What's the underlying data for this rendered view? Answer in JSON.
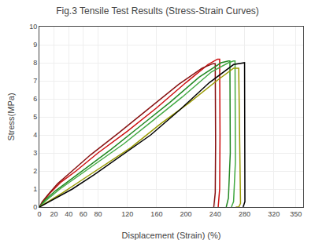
{
  "chart_data": {
    "type": "line",
    "title": "Fig.3 Tensile Test Results (Stress-Strain Curves)",
    "x_label": "Displacement (Strain) (%)",
    "y_label": "Stress(MPa)",
    "xlim": [
      0,
      360
    ],
    "ylim": [
      0,
      10
    ],
    "xticks": [
      0,
      20,
      40,
      60,
      80,
      120,
      160,
      200,
      240,
      280,
      320,
      350
    ],
    "yticks": [
      0,
      1,
      2,
      3,
      4,
      5,
      6,
      7,
      8,
      9,
      10
    ],
    "grid": true,
    "series": [
      {
        "color": "#cc1111",
        "x": [
          0,
          5,
          15,
          30,
          50,
          80,
          120,
          160,
          200,
          230,
          243,
          246,
          246.5,
          246,
          244
        ],
        "values": [
          0,
          0.3,
          0.8,
          1.4,
          2.0,
          3.0,
          4.2,
          5.5,
          6.9,
          7.9,
          8.2,
          8.2,
          4.0,
          1.0,
          0.0
        ]
      },
      {
        "color": "#881111",
        "x": [
          0,
          4,
          12,
          25,
          42,
          70,
          108,
          148,
          190,
          222,
          237,
          240,
          240.5,
          240,
          238
        ],
        "values": [
          0,
          0.3,
          0.7,
          1.3,
          1.9,
          2.9,
          4.1,
          5.4,
          6.8,
          7.7,
          7.95,
          7.95,
          3.5,
          0.8,
          0.0
        ]
      },
      {
        "color": "#228822",
        "x": [
          0,
          8,
          22,
          42,
          65,
          98,
          138,
          178,
          218,
          248,
          258,
          260,
          260.5,
          258,
          255
        ],
        "values": [
          0,
          0.4,
          0.9,
          1.5,
          2.2,
          3.2,
          4.5,
          5.8,
          7.2,
          8.0,
          8.1,
          8.1,
          3.0,
          0.5,
          0.0
        ]
      },
      {
        "color": "#44aa44",
        "x": [
          0,
          10,
          28,
          52,
          80,
          115,
          155,
          195,
          235,
          258,
          265,
          267,
          267.5,
          265,
          262
        ],
        "values": [
          0,
          0.4,
          1.0,
          1.7,
          2.5,
          3.5,
          4.8,
          6.1,
          7.5,
          8.0,
          8.1,
          8.1,
          2.5,
          0.3,
          0.0
        ]
      },
      {
        "color": "#999900",
        "x": [
          0,
          12,
          32,
          58,
          88,
          125,
          165,
          205,
          242,
          265,
          272,
          274,
          274.5,
          272,
          268
        ],
        "values": [
          0,
          0.3,
          0.8,
          1.5,
          2.3,
          3.3,
          4.6,
          5.8,
          7.0,
          7.7,
          7.7,
          0.5,
          0.2,
          0.0,
          0.0
        ]
      },
      {
        "color": "#000000",
        "x": [
          0,
          18,
          45,
          75,
          110,
          152,
          192,
          232,
          265,
          278,
          280,
          280.5,
          278
        ],
        "values": [
          0,
          0.4,
          1.0,
          1.8,
          2.8,
          4.0,
          5.4,
          6.9,
          7.9,
          8.0,
          8.0,
          0.3,
          0.0
        ]
      }
    ]
  }
}
